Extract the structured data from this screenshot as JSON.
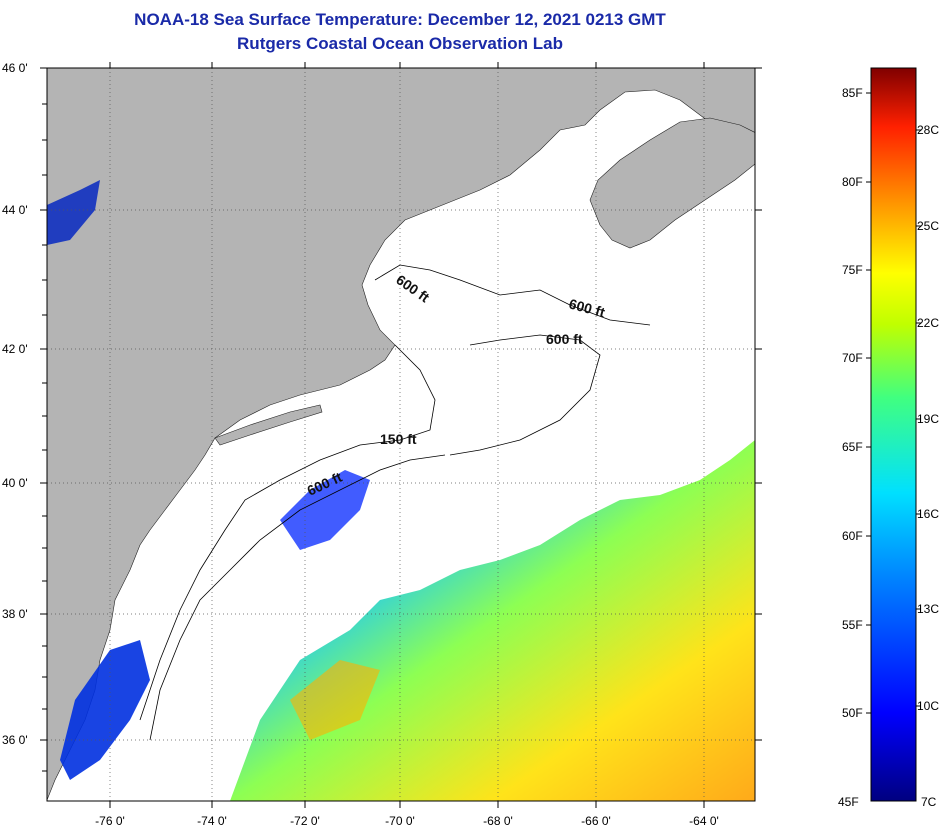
{
  "title": "NOAA-18 Sea Surface Temperature:  December 12, 2021 0213 GMT",
  "subtitle": "Rutgers Coastal Ocean Observation Lab",
  "colors": {
    "title": "#1a2aa8",
    "land": "#b4b4b4",
    "ocean_no_data": "#ffffff",
    "contour": "#000000"
  },
  "map": {
    "lat_ticks": [
      "46 0'",
      "44 0'",
      "42 0'",
      "40 0'",
      "38 0'",
      "36 0'"
    ],
    "lon_ticks": [
      "-76 0'",
      "-74 0'",
      "-72 0'",
      "-70 0'",
      "-68 0'",
      "-66 0'",
      "-64 0'"
    ],
    "lat_range": [
      35,
      46
    ],
    "lon_range": [
      -77,
      -63
    ],
    "contour_labels": [
      "600 ft",
      "600 ft",
      "600 ft",
      "150 ft",
      "600 ft"
    ]
  },
  "colorbar": {
    "f_labels": [
      "85F",
      "80F",
      "75F",
      "70F",
      "65F",
      "60F",
      "55F",
      "50F",
      "45F"
    ],
    "c_labels": [
      "28C",
      "25C",
      "22C",
      "19C",
      "16C",
      "13C",
      "10C",
      "7C"
    ],
    "range_f": [
      45,
      86
    ]
  }
}
